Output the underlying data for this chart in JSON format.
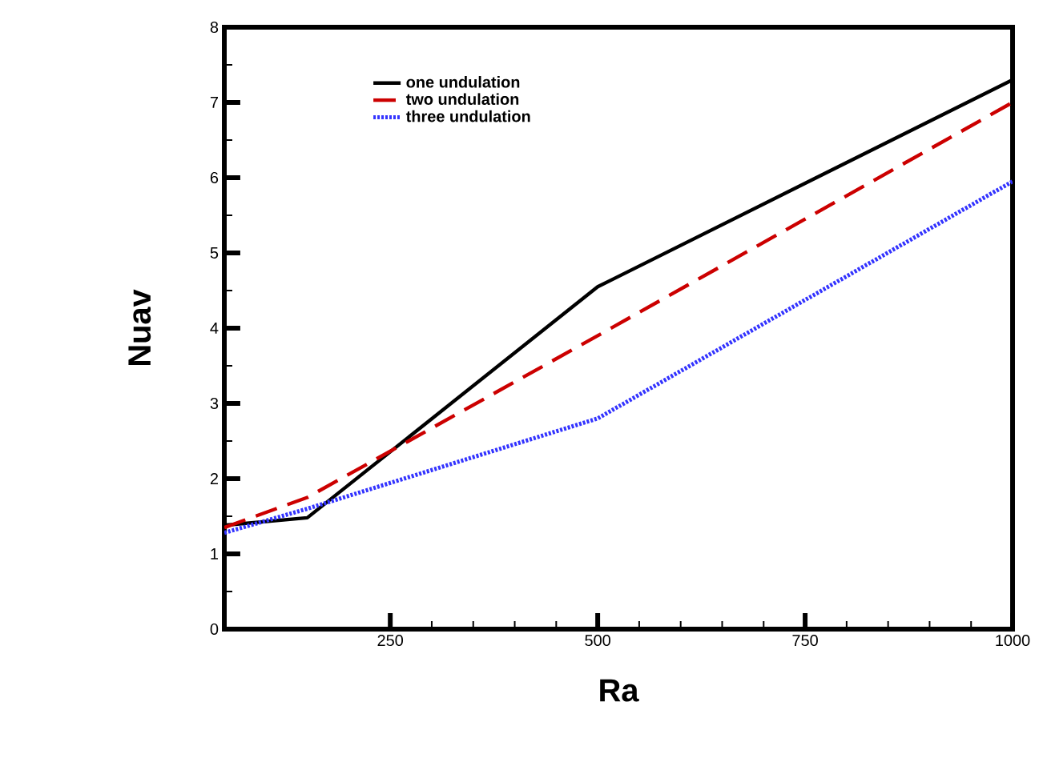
{
  "chart_data": {
    "type": "line",
    "xlabel": "Ra",
    "ylabel": "Nuav",
    "x": [
      50,
      150,
      500,
      1000
    ],
    "series": [
      {
        "name": "one undulation",
        "color": "#000000",
        "line_style": "solid",
        "values": [
          1.38,
          1.48,
          4.55,
          7.3
        ]
      },
      {
        "name": "two undulation",
        "color": "#cc0000",
        "line_style": "dashed",
        "values": [
          1.35,
          1.75,
          3.9,
          7.0
        ]
      },
      {
        "name": "three undulation",
        "color": "#3333ff",
        "line_style": "dotted",
        "values": [
          1.28,
          1.6,
          2.8,
          5.95
        ]
      }
    ],
    "xlim": [
      50,
      1000
    ],
    "xticks": [
      250,
      500,
      750,
      1000
    ],
    "ylim": [
      0,
      8
    ],
    "yticks": [
      0,
      1,
      2,
      3,
      4,
      5,
      6,
      7,
      8
    ],
    "legend": "top",
    "marker": "none"
  }
}
